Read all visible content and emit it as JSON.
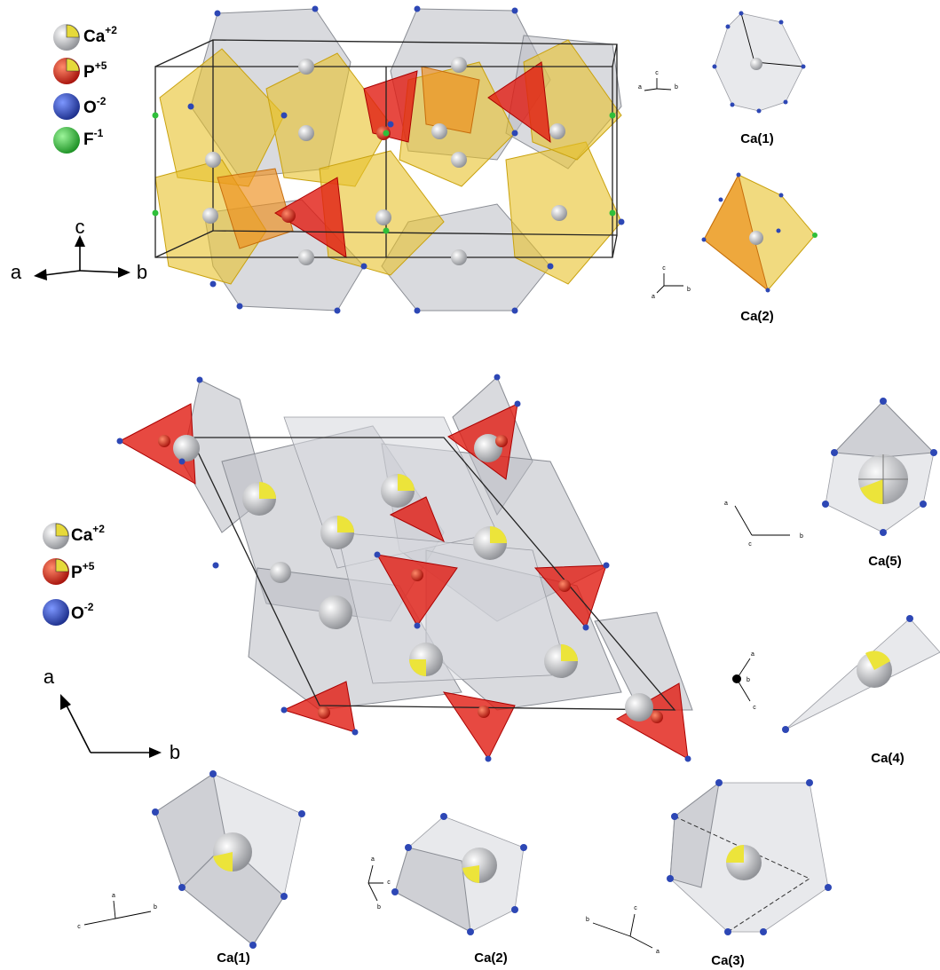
{
  "top_panel": {
    "legend": [
      {
        "element": "Ca",
        "charge": "+2"
      },
      {
        "element": "P",
        "charge": "+5"
      },
      {
        "element": "O",
        "charge": "-2"
      },
      {
        "element": "F",
        "charge": "-1"
      }
    ],
    "main_axes": {
      "a": "a",
      "b": "b",
      "c": "c"
    },
    "polyhedra": [
      {
        "label": "Ca(1)",
        "axes": {
          "a": "a",
          "b": "b",
          "c": "c"
        }
      },
      {
        "label": "Ca(2)",
        "axes": {
          "a": "a",
          "b": "b",
          "c": "c"
        }
      }
    ]
  },
  "bottom_panel": {
    "legend": [
      {
        "element": "Ca",
        "charge": "+2"
      },
      {
        "element": "P",
        "charge": "+5"
      },
      {
        "element": "O",
        "charge": "-2"
      }
    ],
    "main_axes": {
      "a": "a",
      "b": "b"
    },
    "polyhedra": [
      {
        "label": "Ca(5)",
        "axes": {
          "a": "a",
          "b": "b",
          "c": "c"
        }
      },
      {
        "label": "Ca(4)",
        "axes": {
          "a": "a",
          "b": "b",
          "c": "c"
        }
      },
      {
        "label": "Ca(1)",
        "axes": {
          "a": "a",
          "b": "b",
          "c": "c"
        }
      },
      {
        "label": "Ca(2)",
        "axes": {
          "a": "a",
          "b": "b",
          "c": "c"
        }
      },
      {
        "label": "Ca(3)",
        "axes": {
          "a": "a",
          "b": "b",
          "c": "c"
        }
      }
    ]
  }
}
